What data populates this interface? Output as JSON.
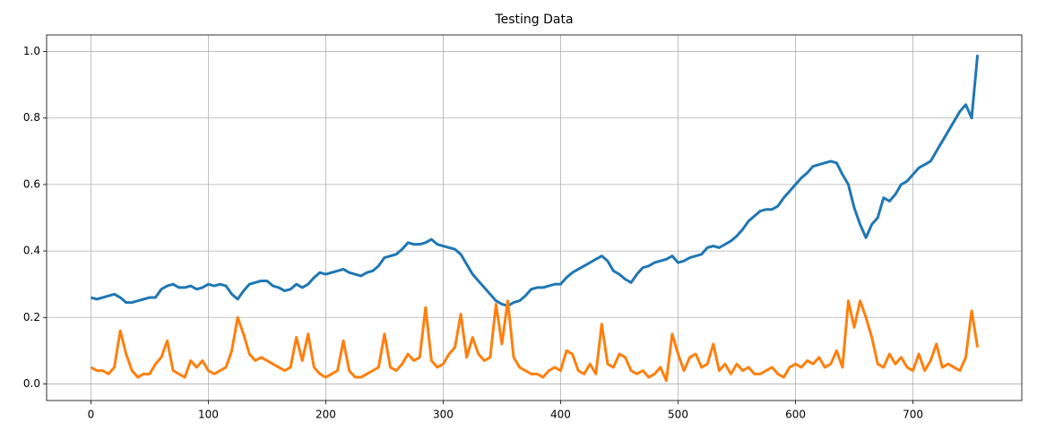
{
  "chart_data": {
    "type": "line",
    "title": "Testing Data",
    "x": [
      0,
      5,
      10,
      15,
      20,
      25,
      30,
      35,
      40,
      45,
      50,
      55,
      60,
      65,
      70,
      75,
      80,
      85,
      90,
      95,
      100,
      105,
      110,
      115,
      120,
      125,
      130,
      135,
      140,
      145,
      150,
      155,
      160,
      165,
      170,
      175,
      180,
      185,
      190,
      195,
      200,
      205,
      210,
      215,
      220,
      225,
      230,
      235,
      240,
      245,
      250,
      255,
      260,
      265,
      270,
      275,
      280,
      285,
      290,
      295,
      300,
      305,
      310,
      315,
      320,
      325,
      330,
      335,
      340,
      345,
      350,
      355,
      360,
      365,
      370,
      375,
      380,
      385,
      390,
      395,
      400,
      405,
      410,
      415,
      420,
      425,
      430,
      435,
      440,
      445,
      450,
      455,
      460,
      465,
      470,
      475,
      480,
      485,
      490,
      495,
      500,
      505,
      510,
      515,
      520,
      525,
      530,
      535,
      540,
      545,
      550,
      555,
      560,
      565,
      570,
      575,
      580,
      585,
      590,
      595,
      600,
      605,
      610,
      615,
      620,
      625,
      630,
      635,
      640,
      645,
      650,
      655,
      660,
      665,
      670,
      675,
      680,
      685,
      690,
      695,
      700,
      705,
      710,
      715,
      720,
      725,
      730,
      735,
      740,
      745,
      750,
      755
    ],
    "series": [
      {
        "color": "#1f77b4",
        "values": [
          0.26,
          0.255,
          0.26,
          0.265,
          0.27,
          0.26,
          0.245,
          0.245,
          0.25,
          0.255,
          0.26,
          0.26,
          0.285,
          0.295,
          0.3,
          0.29,
          0.29,
          0.295,
          0.285,
          0.29,
          0.3,
          0.295,
          0.3,
          0.295,
          0.27,
          0.255,
          0.28,
          0.3,
          0.305,
          0.31,
          0.31,
          0.295,
          0.29,
          0.28,
          0.285,
          0.3,
          0.29,
          0.3,
          0.32,
          0.335,
          0.33,
          0.335,
          0.34,
          0.345,
          0.335,
          0.33,
          0.325,
          0.335,
          0.34,
          0.355,
          0.38,
          0.385,
          0.39,
          0.405,
          0.425,
          0.42,
          0.42,
          0.425,
          0.435,
          0.42,
          0.415,
          0.41,
          0.405,
          0.39,
          0.36,
          0.33,
          0.31,
          0.29,
          0.27,
          0.25,
          0.24,
          0.235,
          0.245,
          0.25,
          0.265,
          0.285,
          0.29,
          0.29,
          0.295,
          0.3,
          0.3,
          0.32,
          0.335,
          0.345,
          0.355,
          0.365,
          0.375,
          0.385,
          0.37,
          0.34,
          0.33,
          0.315,
          0.305,
          0.33,
          0.35,
          0.355,
          0.365,
          0.37,
          0.375,
          0.385,
          0.365,
          0.37,
          0.38,
          0.385,
          0.39,
          0.41,
          0.415,
          0.41,
          0.42,
          0.43,
          0.445,
          0.465,
          0.49,
          0.505,
          0.52,
          0.525,
          0.525,
          0.535,
          0.56,
          0.58,
          0.6,
          0.62,
          0.635,
          0.655,
          0.66,
          0.665,
          0.67,
          0.665,
          0.63,
          0.6,
          0.53,
          0.48,
          0.44,
          0.48,
          0.5,
          0.56,
          0.55,
          0.57,
          0.6,
          0.61,
          0.63,
          0.65,
          0.66,
          0.67,
          0.7,
          0.73,
          0.76,
          0.79,
          0.82,
          0.84,
          0.8,
          0.99
        ]
      },
      {
        "color": "#ff7f0e",
        "values": [
          0.05,
          0.04,
          0.04,
          0.03,
          0.05,
          0.16,
          0.09,
          0.04,
          0.02,
          0.03,
          0.03,
          0.06,
          0.08,
          0.13,
          0.04,
          0.03,
          0.02,
          0.07,
          0.05,
          0.07,
          0.04,
          0.03,
          0.04,
          0.05,
          0.1,
          0.2,
          0.15,
          0.09,
          0.07,
          0.08,
          0.07,
          0.06,
          0.05,
          0.04,
          0.05,
          0.14,
          0.07,
          0.15,
          0.05,
          0.03,
          0.02,
          0.03,
          0.04,
          0.13,
          0.04,
          0.02,
          0.02,
          0.03,
          0.04,
          0.05,
          0.15,
          0.05,
          0.04,
          0.06,
          0.09,
          0.07,
          0.08,
          0.23,
          0.07,
          0.05,
          0.06,
          0.09,
          0.11,
          0.21,
          0.08,
          0.14,
          0.09,
          0.07,
          0.08,
          0.24,
          0.12,
          0.25,
          0.08,
          0.05,
          0.04,
          0.03,
          0.03,
          0.02,
          0.04,
          0.05,
          0.04,
          0.1,
          0.09,
          0.04,
          0.03,
          0.06,
          0.03,
          0.18,
          0.06,
          0.05,
          0.09,
          0.08,
          0.04,
          0.03,
          0.04,
          0.02,
          0.03,
          0.05,
          0.01,
          0.15,
          0.09,
          0.04,
          0.08,
          0.09,
          0.05,
          0.06,
          0.12,
          0.04,
          0.06,
          0.03,
          0.06,
          0.04,
          0.05,
          0.03,
          0.03,
          0.04,
          0.05,
          0.03,
          0.02,
          0.05,
          0.06,
          0.05,
          0.07,
          0.06,
          0.08,
          0.05,
          0.06,
          0.1,
          0.05,
          0.25,
          0.17,
          0.25,
          0.2,
          0.14,
          0.06,
          0.05,
          0.09,
          0.06,
          0.08,
          0.05,
          0.04,
          0.09,
          0.04,
          0.07,
          0.12,
          0.05,
          0.06,
          0.05,
          0.04,
          0.08,
          0.22,
          0.11
        ]
      }
    ],
    "xlim": [
      -37.7,
      792.7
    ],
    "xticks": [
      0,
      100,
      200,
      300,
      400,
      500,
      600,
      700
    ],
    "ylim": [
      -0.05,
      1.05
    ],
    "yticks": [
      {
        "value": 0,
        "label": "0.0"
      },
      0.2,
      0.4,
      0.6,
      0.8,
      {
        "value": 1,
        "label": "1.0"
      }
    ],
    "grid": true
  }
}
